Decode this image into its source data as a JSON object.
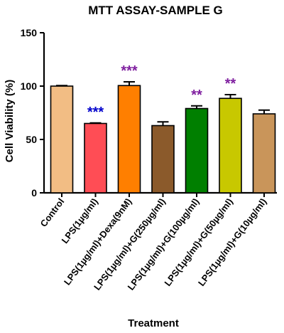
{
  "chart_data": {
    "type": "bar",
    "title": "MTT ASSAY-SAMPLE G",
    "xlabel": "Treatment",
    "ylabel": "Cell Viability (%)",
    "ylim": [
      0,
      150
    ],
    "yticks": [
      0,
      50,
      100,
      150
    ],
    "grid": false,
    "categories": [
      "Control",
      "LPS(1µg/ml)",
      "LPS(1µg/ml)+Dexa(9nM)",
      "LPS(1µg/ml)+G(250µg/ml)",
      "LPS(1µg/ml)+G(100µg/ml)",
      "LPS(1µg/ml)+G(50µg/ml)",
      "LPS(1µg/ml)+G(10µg/ml)"
    ],
    "values": [
      100,
      65,
      100.5,
      63,
      79,
      88.5,
      74
    ],
    "errors": [
      0.5,
      0.5,
      3.5,
      3.5,
      2.5,
      3.5,
      3.5
    ],
    "colors": [
      "#f2bd84",
      "#ff4d55",
      "#ff7f00",
      "#8b5a2b",
      "#007f00",
      "#c8c800",
      "#c9955a"
    ],
    "significance": [
      {
        "index": 1,
        "label": "***",
        "color": "#0000cc"
      },
      {
        "index": 2,
        "label": "***",
        "color": "#7f1f9f"
      },
      {
        "index": 4,
        "label": "**",
        "color": "#7f1f9f"
      },
      {
        "index": 5,
        "label": "**",
        "color": "#7f1f9f"
      }
    ]
  }
}
